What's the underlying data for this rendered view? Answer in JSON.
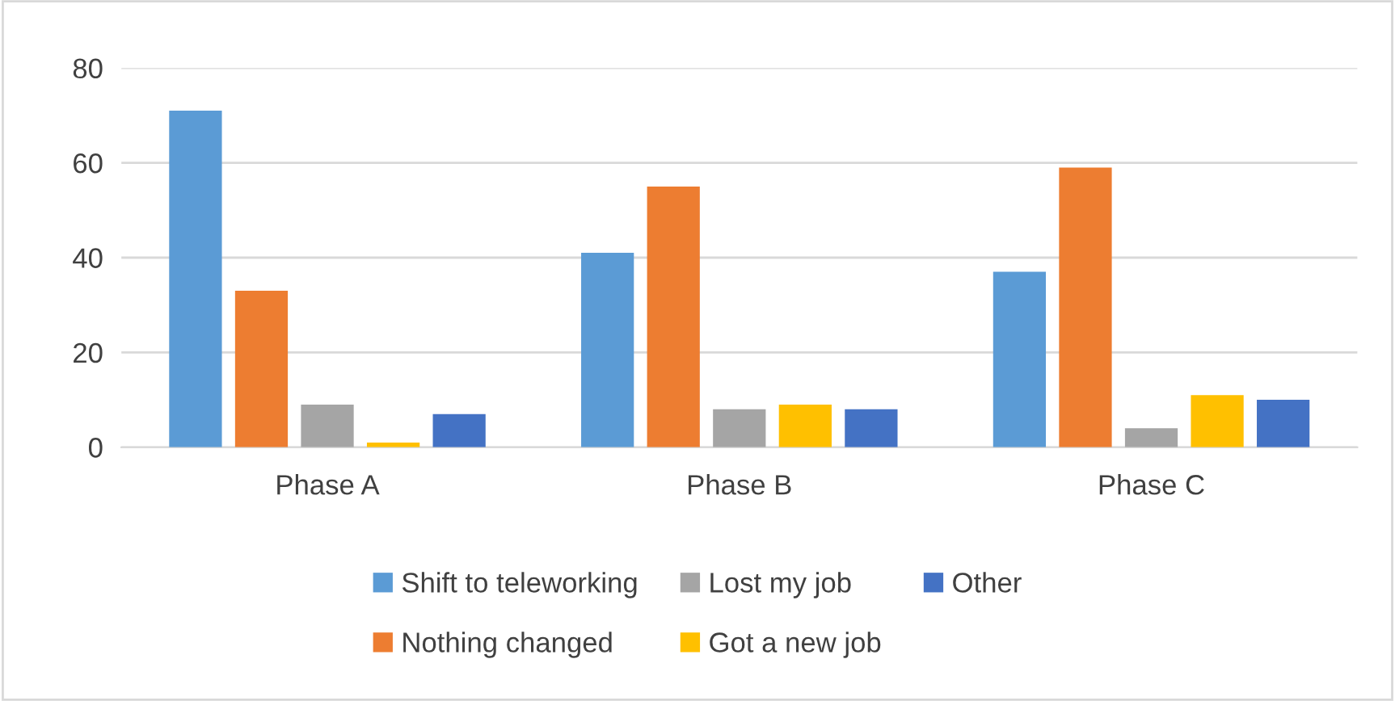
{
  "chart_data": {
    "type": "bar",
    "categories": [
      "Phase A",
      "Phase B",
      "Phase C"
    ],
    "series": [
      {
        "name": "Shift to teleworking",
        "color": "#5b9bd5",
        "values": [
          71,
          41,
          37
        ]
      },
      {
        "name": "Nothing changed",
        "color": "#ed7d31",
        "values": [
          33,
          55,
          59
        ]
      },
      {
        "name": "Lost my job",
        "color": "#a5a5a5",
        "values": [
          9,
          8,
          4
        ]
      },
      {
        "name": "Got a new job",
        "color": "#ffc000",
        "values": [
          1,
          9,
          11
        ]
      },
      {
        "name": "Other",
        "color": "#4472c4",
        "values": [
          7,
          8,
          10
        ]
      }
    ],
    "ylim": [
      0,
      80
    ],
    "yticks": [
      0,
      20,
      40,
      60,
      80
    ],
    "grid": "y",
    "legend": "bottom"
  }
}
